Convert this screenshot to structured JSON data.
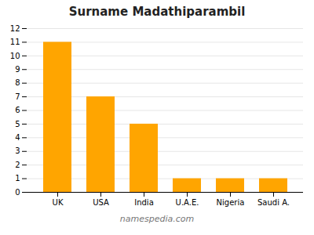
{
  "chart_data": {
    "type": "bar",
    "title": "Surname Madathiparambil",
    "categories": [
      "UK",
      "USA",
      "India",
      "U.A.E.",
      "Nigeria",
      "Saudi A."
    ],
    "values": [
      11,
      7,
      5,
      1,
      1,
      1
    ],
    "color": "#FFA500",
    "ylim": [
      0,
      12
    ],
    "yticks": [
      0,
      1,
      2,
      3,
      4,
      5,
      6,
      7,
      8,
      9,
      10,
      11,
      12
    ],
    "grid": true,
    "caption": "namespedia.com"
  }
}
